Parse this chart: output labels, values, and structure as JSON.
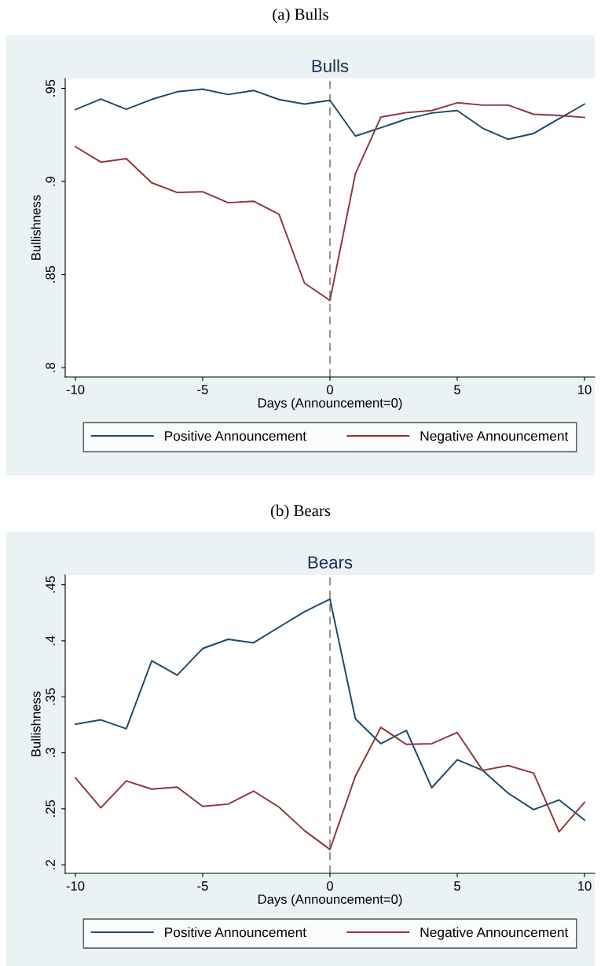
{
  "chart_data": [
    {
      "type": "line",
      "title": "Bulls",
      "xlabel": "Days (Announcement=0)",
      "ylabel": "Bullishness",
      "annotations": [
        "(a) Bulls"
      ],
      "x": [
        -10,
        -9,
        -8,
        -7,
        -6,
        -5,
        -4,
        -3,
        -2,
        -1,
        0,
        1,
        2,
        3,
        4,
        5,
        6,
        7,
        8,
        9,
        10
      ],
      "series": [
        {
          "name": "Positive Announcement",
          "color": "#1a476f",
          "values": [
            0.9386,
            0.9443,
            0.9388,
            0.9441,
            0.9482,
            0.9496,
            0.9467,
            0.9489,
            0.944,
            0.9416,
            0.9436,
            0.9244,
            0.9289,
            0.9335,
            0.9368,
            0.9381,
            0.9286,
            0.9227,
            0.9258,
            0.9337,
            0.9416
          ]
        },
        {
          "name": "Negative Announcement",
          "color": "#90353b",
          "values": [
            0.9187,
            0.9104,
            0.9123,
            0.8993,
            0.8941,
            0.8945,
            0.8886,
            0.8894,
            0.8824,
            0.8454,
            0.8361,
            0.9042,
            0.9346,
            0.937,
            0.9381,
            0.9423,
            0.941,
            0.941,
            0.9361,
            0.9355,
            0.9344
          ]
        }
      ],
      "xlim": [
        -10.4,
        10.4
      ],
      "ylim": [
        0.795,
        0.9553
      ],
      "xticks": [
        -10,
        -5,
        0,
        5,
        10
      ],
      "yticks": [
        {
          "value": 0.8,
          "label": ".8"
        },
        {
          "value": 0.85,
          "label": ".85"
        },
        {
          "value": 0.9,
          "label": ".9"
        },
        {
          "value": 0.95,
          "label": ".95"
        }
      ],
      "ref_lines": [
        {
          "axis": "x",
          "value": 0,
          "color": "#808080",
          "line_style": "dashed"
        }
      ],
      "grid": false,
      "legend": "bottom",
      "line_style": "solid",
      "marker": "none"
    },
    {
      "type": "line",
      "title": "Bears",
      "xlabel": "Days (Announcement=0)",
      "ylabel": "Bullishness",
      "annotations": [
        "(b) Bears"
      ],
      "x": [
        -10,
        -9,
        -8,
        -7,
        -6,
        -5,
        -4,
        -3,
        -2,
        -1,
        0,
        1,
        2,
        3,
        4,
        5,
        6,
        7,
        8,
        9,
        10
      ],
      "series": [
        {
          "name": "Positive Announcement",
          "color": "#1a476f",
          "values": [
            0.3255,
            0.3294,
            0.3215,
            0.3821,
            0.3693,
            0.3931,
            0.4013,
            0.3982,
            0.4122,
            0.4259,
            0.4372,
            0.3303,
            0.3081,
            0.32,
            0.2688,
            0.2938,
            0.2843,
            0.2639,
            0.2493,
            0.2579,
            0.2399
          ]
        },
        {
          "name": "Negative Announcement",
          "color": "#90353b",
          "values": [
            0.2776,
            0.2509,
            0.2749,
            0.2676,
            0.2694,
            0.2521,
            0.2542,
            0.2658,
            0.2515,
            0.2305,
            0.2137,
            0.2792,
            0.3227,
            0.3075,
            0.3081,
            0.3181,
            0.2843,
            0.2886,
            0.2819,
            0.2295,
            0.2557
          ]
        }
      ],
      "xlim": [
        -10.4,
        10.4
      ],
      "ylim": [
        0.1924,
        0.4588
      ],
      "xticks": [
        -10,
        -5,
        0,
        5,
        10
      ],
      "yticks": [
        {
          "value": 0.2,
          "label": ".2"
        },
        {
          "value": 0.25,
          "label": ".25"
        },
        {
          "value": 0.3,
          "label": ".3"
        },
        {
          "value": 0.35,
          "label": ".35"
        },
        {
          "value": 0.4,
          "label": ".4"
        },
        {
          "value": 0.45,
          "label": ".45"
        }
      ],
      "ref_lines": [
        {
          "axis": "x",
          "value": 0,
          "color": "#808080",
          "line_style": "dashed"
        }
      ],
      "grid": false,
      "legend": "bottom",
      "line_style": "solid",
      "marker": "none"
    }
  ]
}
